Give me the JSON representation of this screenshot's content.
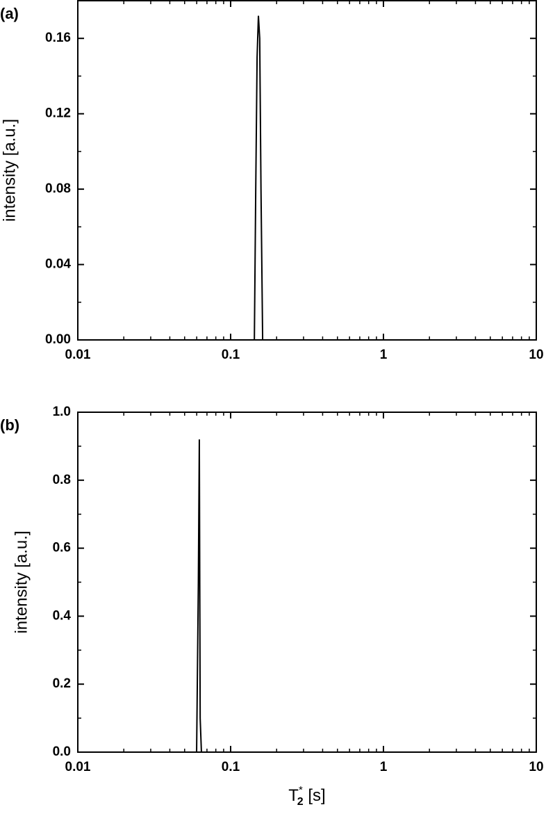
{
  "chart_data": [
    {
      "type": "line",
      "panel_label": "(a)",
      "ylabel": "intensity [a.u.]",
      "xscale": "log",
      "x": [
        0.143,
        0.146,
        0.149,
        0.152,
        0.155,
        0.158,
        0.162
      ],
      "values": [
        0,
        0.08,
        0.15,
        0.172,
        0.16,
        0.08,
        0
      ],
      "color": "#000000",
      "xlim": [
        0.01,
        10
      ],
      "xticks": [
        0.01,
        0.1,
        1,
        10
      ],
      "ylim": [
        0,
        0.18
      ],
      "yticks": [
        {
          "value": 0,
          "label": "0.00"
        },
        0.04,
        0.08,
        0.12,
        0.16
      ]
    },
    {
      "type": "line",
      "panel_label": "(b)",
      "ylabel": "intensity [a.u.]",
      "xscale": "log",
      "xlabel": {
        "base": "T",
        "subscript": "2",
        "superscript": "*",
        "rest": " [s]"
      },
      "x": [
        0.0599,
        0.0615,
        0.0624,
        0.0632,
        0.0644
      ],
      "values": [
        0,
        0.5,
        0.92,
        0.1,
        0
      ],
      "color": "#000000",
      "xlim": [
        0.01,
        10
      ],
      "xticks": [
        0.01,
        0.1,
        1,
        10
      ],
      "ylim": [
        0,
        1
      ],
      "yticks": [
        {
          "value": 0,
          "label": "0.0"
        },
        0.2,
        0.4,
        0.6,
        0.8,
        {
          "value": 1,
          "label": "1.0"
        }
      ]
    }
  ]
}
